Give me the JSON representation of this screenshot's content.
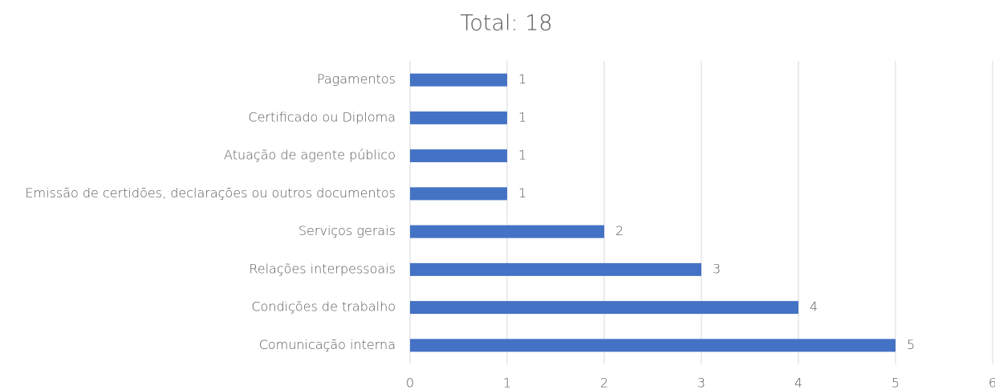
{
  "chart_data": {
    "type": "bar",
    "orientation": "horizontal",
    "title": "Total: 18",
    "categories": [
      "Pagamentos",
      "Certificado ou Diploma",
      "Atuação de agente público",
      "Emissão de certidões, declarações ou outros documentos",
      "Serviços gerais",
      "Relações interpessoais",
      "Condições de trabalho",
      "Comunicação interna"
    ],
    "values": [
      1,
      1,
      1,
      1,
      2,
      3,
      4,
      5
    ],
    "color": "#4472c4",
    "xlim": [
      0,
      6
    ],
    "xticks": [
      0,
      1,
      2,
      3,
      4,
      5,
      6
    ],
    "grid": true
  }
}
